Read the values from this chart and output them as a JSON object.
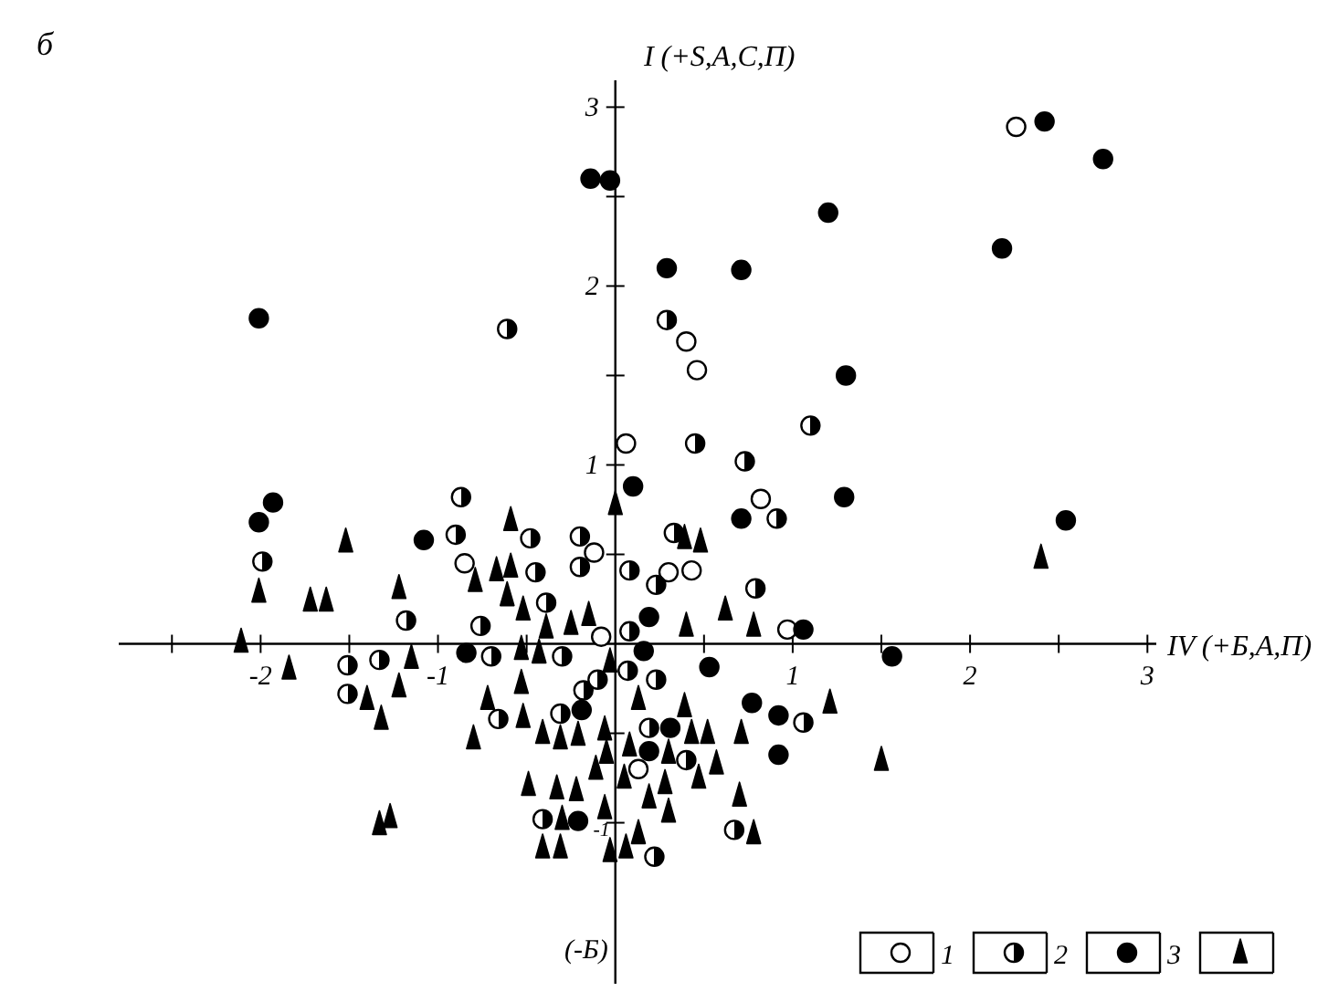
{
  "chart_data": {
    "type": "scatter",
    "title": "б",
    "xlabel": "IV (+Б,A,П)",
    "ylabel": "I (+S,A,C,П)",
    "annotations": [
      "(-Б)"
    ],
    "xlim": [
      -2.8,
      3.05
    ],
    "ylim": [
      -1.9,
      3.15
    ],
    "xticks": [
      {
        "value": -2.5,
        "label": null
      },
      -2,
      {
        "value": -1.5,
        "label": null
      },
      -1,
      {
        "value": -0.5,
        "label": null
      },
      {
        "value": 0.5,
        "label": null
      },
      1,
      {
        "value": 1.5,
        "label": null
      },
      2,
      {
        "value": 2.5,
        "label": null
      },
      3
    ],
    "yticks": [
      {
        "value": -1,
        "label": "-1"
      },
      {
        "value": -0.5,
        "label": null
      },
      {
        "value": 0.5,
        "label": null
      },
      1,
      {
        "value": 1.5,
        "label": null
      },
      2,
      {
        "value": 2.5,
        "label": null
      },
      3
    ],
    "legend": "bottom right",
    "series": [
      {
        "name": "1",
        "color": "#ffffff",
        "marker": "circle",
        "x": [
          2.26,
          0.4,
          0.46,
          0.06,
          0.82,
          0.3,
          0.43,
          -0.12,
          -0.08,
          0.97,
          0.13,
          -0.85
        ],
        "values": [
          2.89,
          1.69,
          1.53,
          1.12,
          0.81,
          0.4,
          0.41,
          0.51,
          0.04,
          0.08,
          -0.7,
          0.45
        ]
      },
      {
        "name": "2",
        "color": "#000000",
        "marker": "half-circle",
        "x": [
          -0.61,
          0.29,
          1.1,
          0.45,
          0.73,
          0.91,
          0.33,
          0.08,
          0.23,
          0.79,
          0.08,
          0.07,
          0.23,
          0.19,
          0.4,
          1.06,
          0.67,
          0.22,
          -1.99,
          -0.87,
          -0.9,
          -0.48,
          -0.2,
          -0.45,
          -0.2,
          -0.39,
          -1.18,
          -0.76,
          -0.7,
          -0.3,
          -1.51,
          -1.33,
          -1.51,
          -0.66,
          -0.31,
          -0.18,
          -0.1,
          -0.41
        ],
        "values": [
          1.76,
          1.81,
          1.22,
          1.12,
          1.02,
          0.7,
          0.62,
          0.41,
          0.33,
          0.31,
          0.07,
          -0.15,
          -0.2,
          -0.47,
          -0.65,
          -0.44,
          -1.04,
          -1.19,
          0.46,
          0.82,
          0.61,
          0.59,
          0.6,
          0.4,
          0.43,
          0.23,
          0.13,
          0.1,
          -0.07,
          -0.07,
          -0.12,
          -0.09,
          -0.28,
          -0.42,
          -0.39,
          -0.26,
          -0.2,
          -0.98
        ]
      },
      {
        "name": "3",
        "color": "#000000",
        "marker": "circle",
        "x": [
          -0.14,
          -0.03,
          0.29,
          0.71,
          1.2,
          1.3,
          2.42,
          2.75,
          2.18,
          1.29,
          2.54,
          1.06,
          1.56,
          -2.01,
          -1.93,
          -2.01,
          -1.08,
          -0.84,
          -0.19,
          -0.21,
          0.1,
          0.71,
          0.19,
          0.16,
          0.53,
          0.77,
          0.92,
          0.92,
          0.31,
          0.19
        ],
        "values": [
          2.6,
          2.59,
          2.1,
          2.09,
          2.41,
          1.5,
          2.92,
          2.71,
          2.21,
          0.82,
          0.69,
          0.08,
          -0.07,
          1.82,
          0.79,
          0.68,
          0.58,
          -0.05,
          -0.37,
          -0.99,
          0.88,
          0.7,
          0.15,
          -0.04,
          -0.13,
          -0.33,
          -0.4,
          -0.62,
          -0.47,
          -0.6
        ]
      },
      {
        "color": "#000000",
        "marker": "triangle",
        "x": [
          -1.52,
          -2.01,
          -1.72,
          -1.63,
          -2.11,
          -1.84,
          -1.22,
          -1.15,
          -1.22,
          -1.4,
          -1.32,
          -1.33,
          -1.27,
          -0.79,
          -0.67,
          -0.59,
          -0.59,
          -0.61,
          -0.52,
          -0.39,
          -0.25,
          -0.15,
          -0.53,
          -0.43,
          -0.53,
          -0.72,
          -0.52,
          -0.8,
          -0.41,
          -0.31,
          -0.21,
          -0.06,
          -0.05,
          -0.11,
          -0.49,
          -0.33,
          -0.22,
          -0.06,
          -0.3,
          -0.41,
          -0.31,
          -0.03,
          0.0,
          -0.03,
          0.39,
          0.48,
          0.4,
          0.62,
          0.78,
          0.13,
          0.39,
          0.43,
          0.52,
          0.71,
          0.08,
          0.3,
          0.57,
          0.47,
          0.28,
          0.05,
          0.19,
          0.3,
          0.7,
          0.78,
          0.06,
          0.13,
          1.21,
          1.5,
          2.4
        ],
        "values": [
          0.57,
          0.29,
          0.24,
          0.24,
          0.01,
          -0.14,
          0.31,
          -0.08,
          -0.24,
          -0.31,
          -0.42,
          -1.01,
          -0.97,
          0.35,
          0.41,
          0.43,
          0.69,
          0.27,
          0.19,
          0.09,
          0.11,
          0.16,
          -0.03,
          -0.05,
          -0.22,
          -0.31,
          -0.41,
          -0.53,
          -0.5,
          -0.53,
          -0.51,
          -0.48,
          -0.61,
          -0.7,
          -0.79,
          -0.81,
          -0.82,
          -0.92,
          -0.98,
          -1.14,
          -1.14,
          -0.1,
          0.78,
          -1.16,
          0.59,
          0.57,
          0.1,
          0.19,
          0.1,
          -0.31,
          -0.35,
          -0.5,
          -0.5,
          -0.5,
          -0.57,
          -0.61,
          -0.67,
          -0.75,
          -0.78,
          -0.75,
          -0.86,
          -0.94,
          -0.85,
          -1.06,
          -1.14,
          -1.06,
          -0.33,
          -0.65,
          0.48
        ]
      }
    ]
  }
}
